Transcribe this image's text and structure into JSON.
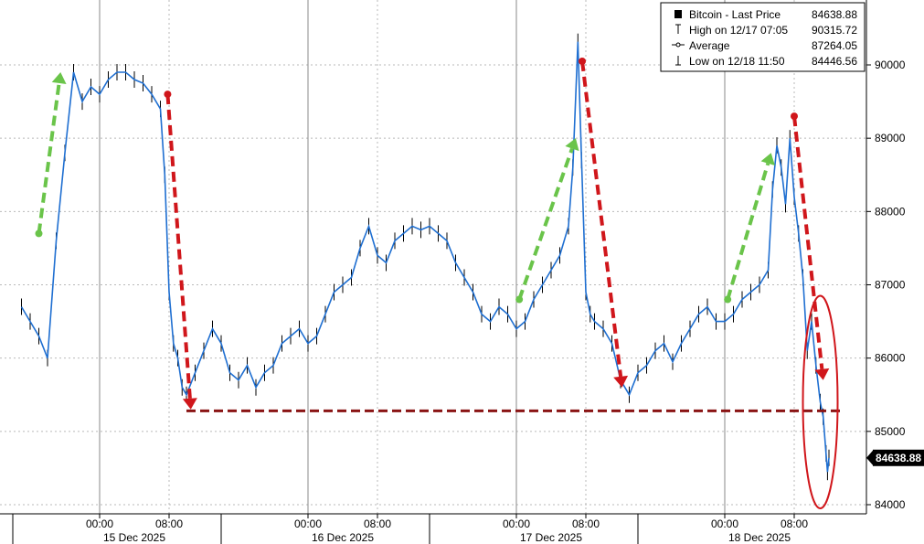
{
  "chart_data": {
    "type": "line",
    "title": "",
    "xlabel": "",
    "ylabel": "",
    "ylim": [
      83800,
      90900
    ],
    "y_ticks": [
      "84000",
      "85000",
      "86000",
      "87000",
      "88000",
      "89000",
      "90000"
    ],
    "x_ticks": [
      {
        "label": "00:00",
        "t": "2025-12-15 00:00"
      },
      {
        "label": "08:00",
        "t": "2025-12-15 08:00"
      },
      {
        "label": "00:00",
        "t": "2025-12-16 00:00"
      },
      {
        "label": "08:00",
        "t": "2025-12-16 08:00"
      },
      {
        "label": "00:00",
        "t": "2025-12-17 00:00"
      },
      {
        "label": "08:00",
        "t": "2025-12-17 08:00"
      },
      {
        "label": "00:00",
        "t": "2025-12-18 00:00"
      },
      {
        "label": "08:00",
        "t": "2025-12-18 08:00"
      }
    ],
    "date_labels": [
      {
        "label": "15 Dec 2025",
        "t": "2025-12-15 04:00"
      },
      {
        "label": "16 Dec 2025",
        "t": "2025-12-16 04:00"
      },
      {
        "label": "17 Dec 2025",
        "t": "2025-12-17 04:00"
      },
      {
        "label": "18 Dec 2025",
        "t": "2025-12-18 04:00"
      }
    ],
    "grid": true,
    "legend_position": "top-right",
    "legend": [
      {
        "label": "Bitcoin - Last Price",
        "value": "84638.88",
        "marker": "filled-square"
      },
      {
        "label": "High on 12/17 07:05",
        "value": "90315.72",
        "marker": "high-marker"
      },
      {
        "label": "Average",
        "value": "87264.05",
        "marker": "average-marker"
      },
      {
        "label": "Low on 12/18 11:50",
        "value": "84446.56",
        "marker": "low-marker"
      }
    ],
    "last_price_label": "84638.88",
    "support_level": 85280,
    "series": [
      {
        "name": "Bitcoin - Last Price",
        "points": [
          [
            "2025-12-14 15:00",
            86700
          ],
          [
            "2025-12-14 16:00",
            86500
          ],
          [
            "2025-12-14 17:00",
            86300
          ],
          [
            "2025-12-14 18:00",
            86000
          ],
          [
            "2025-12-14 19:00",
            87600
          ],
          [
            "2025-12-14 20:00",
            88800
          ],
          [
            "2025-12-14 21:00",
            89900
          ],
          [
            "2025-12-14 22:00",
            89500
          ],
          [
            "2025-12-14 23:00",
            89700
          ],
          [
            "2025-12-15 00:00",
            89600
          ],
          [
            "2025-12-15 01:00",
            89800
          ],
          [
            "2025-12-15 02:00",
            89900
          ],
          [
            "2025-12-15 03:00",
            89900
          ],
          [
            "2025-12-15 04:00",
            89800
          ],
          [
            "2025-12-15 05:00",
            89750
          ],
          [
            "2025-12-15 06:00",
            89600
          ],
          [
            "2025-12-15 07:00",
            89400
          ],
          [
            "2025-12-15 07:30",
            88500
          ],
          [
            "2025-12-15 08:00",
            86900
          ],
          [
            "2025-12-15 08:30",
            86200
          ],
          [
            "2025-12-15 09:00",
            86000
          ],
          [
            "2025-12-15 09:30",
            85600
          ],
          [
            "2025-12-15 10:00",
            85500
          ],
          [
            "2025-12-15 11:00",
            85800
          ],
          [
            "2025-12-15 12:00",
            86100
          ],
          [
            "2025-12-15 13:00",
            86400
          ],
          [
            "2025-12-15 14:00",
            86200
          ],
          [
            "2025-12-15 15:00",
            85800
          ],
          [
            "2025-12-15 16:00",
            85700
          ],
          [
            "2025-12-15 17:00",
            85900
          ],
          [
            "2025-12-15 18:00",
            85600
          ],
          [
            "2025-12-15 19:00",
            85800
          ],
          [
            "2025-12-15 20:00",
            85900
          ],
          [
            "2025-12-15 21:00",
            86200
          ],
          [
            "2025-12-15 22:00",
            86300
          ],
          [
            "2025-12-15 23:00",
            86400
          ],
          [
            "2025-12-16 00:00",
            86200
          ],
          [
            "2025-12-16 01:00",
            86300
          ],
          [
            "2025-12-16 02:00",
            86600
          ],
          [
            "2025-12-16 03:00",
            86900
          ],
          [
            "2025-12-16 04:00",
            87000
          ],
          [
            "2025-12-16 05:00",
            87100
          ],
          [
            "2025-12-16 06:00",
            87500
          ],
          [
            "2025-12-16 07:00",
            87800
          ],
          [
            "2025-12-16 08:00",
            87400
          ],
          [
            "2025-12-16 09:00",
            87300
          ],
          [
            "2025-12-16 10:00",
            87600
          ],
          [
            "2025-12-16 11:00",
            87700
          ],
          [
            "2025-12-16 12:00",
            87800
          ],
          [
            "2025-12-16 13:00",
            87750
          ],
          [
            "2025-12-16 14:00",
            87800
          ],
          [
            "2025-12-16 15:00",
            87700
          ],
          [
            "2025-12-16 16:00",
            87600
          ],
          [
            "2025-12-16 17:00",
            87300
          ],
          [
            "2025-12-16 18:00",
            87100
          ],
          [
            "2025-12-16 19:00",
            86900
          ],
          [
            "2025-12-16 20:00",
            86600
          ],
          [
            "2025-12-16 21:00",
            86500
          ],
          [
            "2025-12-16 22:00",
            86700
          ],
          [
            "2025-12-16 23:00",
            86600
          ],
          [
            "2025-12-17 00:00",
            86400
          ],
          [
            "2025-12-17 01:00",
            86500
          ],
          [
            "2025-12-17 02:00",
            86800
          ],
          [
            "2025-12-17 03:00",
            87000
          ],
          [
            "2025-12-17 04:00",
            87200
          ],
          [
            "2025-12-17 05:00",
            87400
          ],
          [
            "2025-12-17 06:00",
            87800
          ],
          [
            "2025-12-17 06:30",
            88600
          ],
          [
            "2025-12-17 07:05",
            90315.72
          ],
          [
            "2025-12-17 07:30",
            88700
          ],
          [
            "2025-12-17 08:00",
            86900
          ],
          [
            "2025-12-17 08:30",
            86600
          ],
          [
            "2025-12-17 09:00",
            86500
          ],
          [
            "2025-12-17 10:00",
            86400
          ],
          [
            "2025-12-17 11:00",
            86200
          ],
          [
            "2025-12-17 12:00",
            85700
          ],
          [
            "2025-12-17 13:00",
            85500
          ],
          [
            "2025-12-17 14:00",
            85800
          ],
          [
            "2025-12-17 15:00",
            85900
          ],
          [
            "2025-12-17 16:00",
            86100
          ],
          [
            "2025-12-17 17:00",
            86200
          ],
          [
            "2025-12-17 18:00",
            85950
          ],
          [
            "2025-12-17 19:00",
            86200
          ],
          [
            "2025-12-17 20:00",
            86400
          ],
          [
            "2025-12-17 21:00",
            86600
          ],
          [
            "2025-12-17 22:00",
            86700
          ],
          [
            "2025-12-17 23:00",
            86500
          ],
          [
            "2025-12-18 00:00",
            86500
          ],
          [
            "2025-12-18 01:00",
            86600
          ],
          [
            "2025-12-18 02:00",
            86800
          ],
          [
            "2025-12-18 03:00",
            86900
          ],
          [
            "2025-12-18 04:00",
            87000
          ],
          [
            "2025-12-18 05:00",
            87200
          ],
          [
            "2025-12-18 05:30",
            88300
          ],
          [
            "2025-12-18 06:00",
            88900
          ],
          [
            "2025-12-18 06:30",
            88600
          ],
          [
            "2025-12-18 07:00",
            88100
          ],
          [
            "2025-12-18 07:30",
            89000
          ],
          [
            "2025-12-18 08:00",
            88200
          ],
          [
            "2025-12-18 08:30",
            87700
          ],
          [
            "2025-12-18 09:00",
            87100
          ],
          [
            "2025-12-18 09:30",
            86100
          ],
          [
            "2025-12-18 10:00",
            86500
          ],
          [
            "2025-12-18 10:30",
            85900
          ],
          [
            "2025-12-18 11:00",
            85400
          ],
          [
            "2025-12-18 11:20",
            85200
          ],
          [
            "2025-12-18 11:40",
            84700
          ],
          [
            "2025-12-18 11:50",
            84446.56
          ],
          [
            "2025-12-18 12:00",
            84638.88
          ]
        ]
      }
    ],
    "annotations": [
      {
        "type": "arrow",
        "color": "#6ac44a",
        "dash": true,
        "from": [
          "2025-12-14 17:00",
          87700
        ],
        "to": [
          "2025-12-14 19:30",
          89900
        ]
      },
      {
        "type": "arrow",
        "color": "#d0161b",
        "dash": true,
        "from": [
          "2025-12-15 07:50",
          89600
        ],
        "to": [
          "2025-12-15 10:30",
          85300
        ]
      },
      {
        "type": "arrow",
        "color": "#6ac44a",
        "dash": true,
        "from": [
          "2025-12-17 00:20",
          86800
        ],
        "to": [
          "2025-12-17 06:50",
          89000
        ]
      },
      {
        "type": "arrow",
        "color": "#d0161b",
        "dash": true,
        "from": [
          "2025-12-17 07:35",
          90050
        ],
        "to": [
          "2025-12-17 12:10",
          85600
        ]
      },
      {
        "type": "arrow",
        "color": "#6ac44a",
        "dash": true,
        "from": [
          "2025-12-18 00:20",
          86800
        ],
        "to": [
          "2025-12-18 05:20",
          88800
        ]
      },
      {
        "type": "arrow",
        "color": "#d0161b",
        "dash": true,
        "from": [
          "2025-12-18 08:00",
          89300
        ],
        "to": [
          "2025-12-18 11:20",
          85700
        ]
      },
      {
        "type": "hline",
        "color": "#8a1414",
        "dash": true,
        "value": 85280,
        "from": "2025-12-15 10:00",
        "to": "2025-12-18 13:20"
      },
      {
        "type": "ellipse",
        "color": "#d0161b",
        "center": [
          "2025-12-18 11:00",
          85400
        ],
        "rx_hours": 2.0,
        "ry_value": 1450
      }
    ]
  }
}
